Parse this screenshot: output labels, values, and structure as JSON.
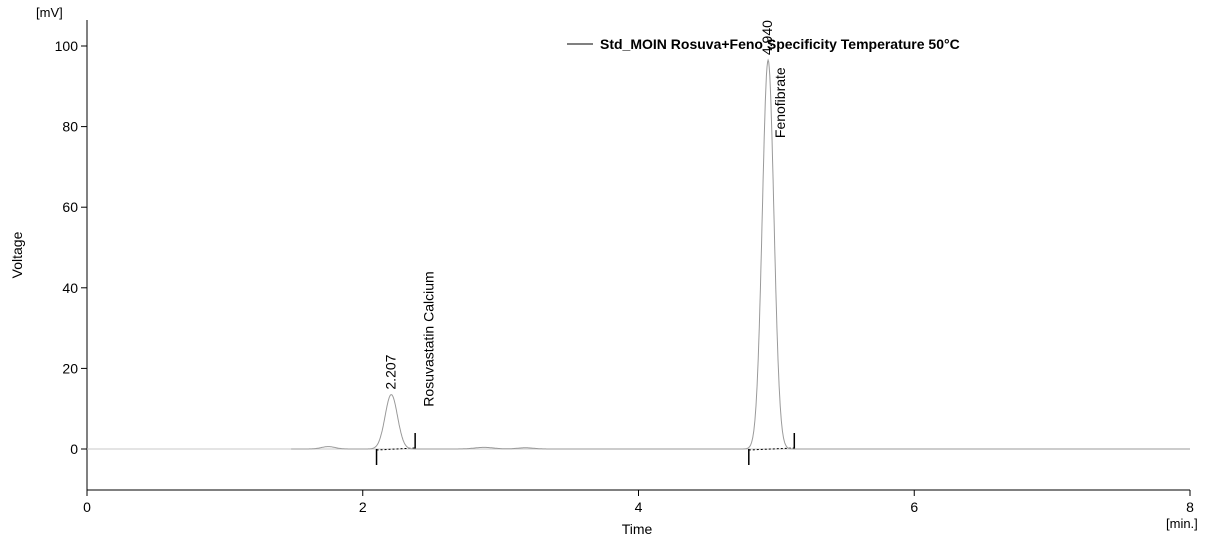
{
  "chart_data": {
    "type": "line",
    "title": "",
    "legend": {
      "label": "Std_MOIN Rosuva+Feno Specificity  Temperature 50°C",
      "placement": "top-right"
    },
    "xlabel": "Time",
    "ylabel": "Voltage",
    "x_unit": "[min.]",
    "y_unit": "[mV]",
    "xlim": [
      0,
      8
    ],
    "ylim": [
      -10,
      105
    ],
    "x_ticks": [
      0,
      2,
      4,
      6,
      8
    ],
    "y_ticks": [
      0,
      20,
      40,
      60,
      80,
      100
    ],
    "grid": false,
    "baseline": 0,
    "trace_start": 1.48,
    "trace_end": 8.0,
    "colors": {
      "trace": "#9a9a9a",
      "axis": "#000000",
      "integration": "#000000"
    },
    "peaks": [
      {
        "name": "Rosuvastatin Calcium",
        "retention_time": "2.207",
        "rt_value": 2.207,
        "height": 13.5,
        "width_sd": 0.045,
        "start": 2.1,
        "end": 2.38
      },
      {
        "name": "Fenofibrate",
        "retention_time": "4.940",
        "rt_value": 4.94,
        "height": 96.5,
        "width_sd": 0.042,
        "start": 4.8,
        "end": 5.13
      }
    ],
    "minor_bumps": [
      {
        "x": 1.75,
        "height": 0.6,
        "width_sd": 0.05
      },
      {
        "x": 2.88,
        "height": 0.4,
        "width_sd": 0.07
      },
      {
        "x": 3.18,
        "height": 0.3,
        "width_sd": 0.06
      }
    ]
  }
}
